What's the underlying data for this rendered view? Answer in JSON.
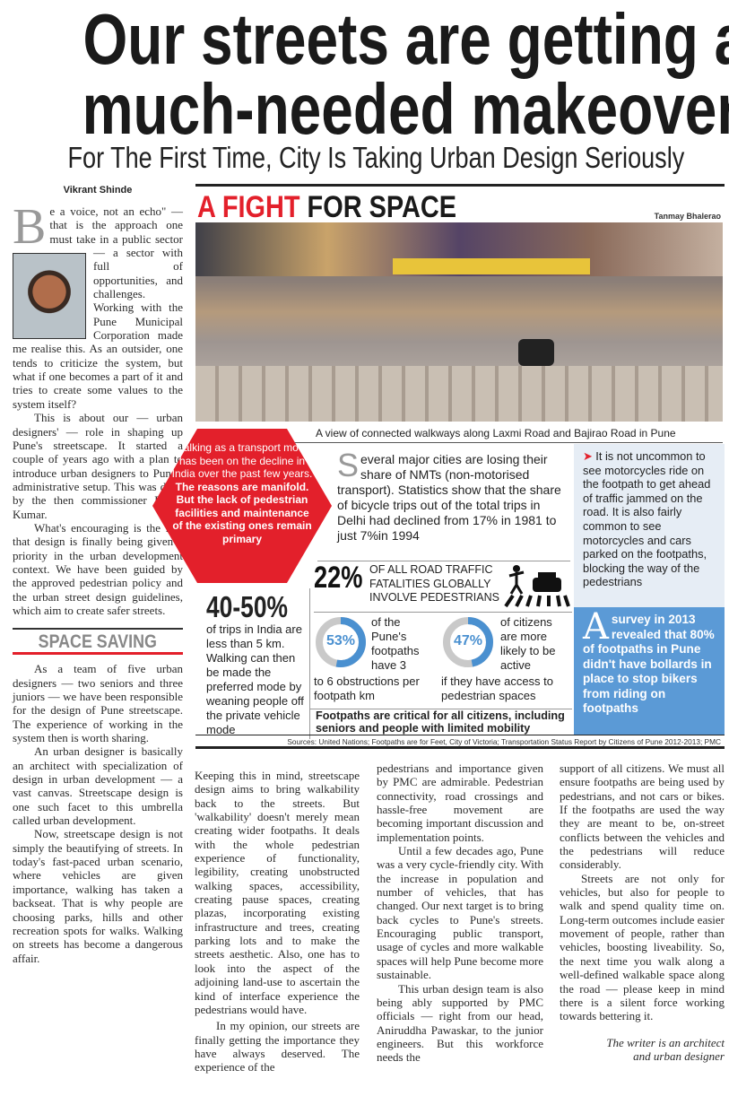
{
  "headline": {
    "line1": "Our streets are getting a",
    "line2": "much-needed makeover"
  },
  "subheadline": "For The First Time, City Is Taking Urban Design Seriously",
  "byline": "Vikrant Shinde",
  "intro": {
    "drop_cap": "B",
    "p1": "e a voice, not an echo\" — that is the approach one must take in a public sector — a sector with full of opportunities, and challenges. Working with the Pune Municipal Corporation made me realise this. As an outsider, one tends to criticize the system, but what if one becomes a part of it and tries to create some values to the system itself?",
    "p2": "This is about our — urban designers' — role in shaping up Pune's streetscape. It started a couple of years ago with a plan to introduce urban designers to Pune's administrative setup. This was done by the then commissioner Kunal Kumar.",
    "p3": "What's encouraging is the fact that design is finally being given a priority in the urban development context. We have been guided by the approved pedestrian policy and the urban street design guidelines, which aim to create safer streets."
  },
  "section_heading": "SPACE SAVING",
  "infographic": {
    "title_red": "A FIGHT",
    "title_black": "FOR SPACE",
    "photo_credit": "Tanmay Bhalerao",
    "caption": "A view of connected walkways along Laxmi Road and Bajirao Road in Pune",
    "hexagon_text_light": "Walking as a transport mode has been on the decline in India over the past few years.",
    "hexagon_text_bold": "The reasons are manifold. But the lack of pedestrian facilities and maintenance of the existing ones remain primary",
    "nmt_drop_cap": "S",
    "nmt_text": "everal major cities are losing their share of NMTs (non-motorised transport). Statistics show that the share of bicycle trips out of the total trips in Delhi had declined from 17% in 1981 to just 7%in 1994",
    "fatalities_pct": "22%",
    "fatalities_text": "OF ALL ROAD TRAFFIC FATALITIES GLOBALLY INVOLVE PEDESTRIANS",
    "trips_pct": "40-50%",
    "trips_text": "of trips in India are less than 5 km. Walking can then be made the preferred mode by weaning people off the private vehicle mode",
    "donut1": {
      "value": 53,
      "label": "53%",
      "text_side": "of the Pune's footpaths have 3",
      "text_below": "to 6 obstructions per footpath km"
    },
    "donut2": {
      "value": 47,
      "label": "47%",
      "text_side": "of citizens are more likely to be active",
      "text_below": "if they have access to pedestrian spaces"
    },
    "footpaths_note": "Footpaths are critical for all citizens, including seniors and people with limited mobility",
    "motorcycles_text": "It is not uncommon to see motorcycles ride on the footpath to get ahead of traffic jammed on the road. It is also fairly common to see motorcycles and cars parked on the footpaths, blocking the way of the pedestrians",
    "survey_drop_cap": "A",
    "survey_text": "survey in 2013 revealed that 80% of footpaths in Pune didn't have bollards in place to stop bikers from riding on footpaths",
    "sources": "Sources: United Nations; Footpaths are for Feet, City of Victoria; Transportation Status Report by Citizens of Pune 2012-2013; PMC"
  },
  "columns": {
    "c1": [
      "As a team of five urban designers — two seniors and three juniors — we have been responsible for the design of Pune streetscape. The experience of working in the system then is worth sharing.",
      "An urban designer is basically an architect with specialization of design in urban development — a vast canvas. Streetscape design is one such facet to this umbrella called urban development.",
      "Now, streetscape design is not simply the beautifying of streets. In today's fast-paced urban scenario, where vehicles are given importance, walking has taken a backseat. That is why people are choosing parks, hills and other recreation spots for walks. Walking on streets has become a dangerous affair."
    ],
    "c2": [
      "Keeping this in mind, streetscape design aims to bring walkability back to the streets. But 'walkability' doesn't merely mean creating wider footpaths. It deals with the whole pedestrian experience of functionality, legibility, creating unobstructed walking spaces, accessibility, creating pause spaces, creating plazas, incorporating existing infrastructure and trees, creating parking lots and to make the streets aesthetic. Also, one has to look into the aspect of the adjoining land-use to ascertain the kind of interface experience the pedestrians would have.",
      "In my opinion, our streets are finally getting the importance they have always deserved. The experience of the"
    ],
    "c3": [
      "pedestrians and importance given by PMC are admirable. Pedestrian connectivity, road crossings and hassle-free movement are becoming important discussion and implementation points.",
      "Until a few decades ago, Pune was a very cycle-friendly city. With the increase in population and number of vehicles, that has changed. Our next target is to bring back cycles to Pune's streets. Encouraging public transport, usage of cycles and more walkable spaces will help Pune become more sustainable.",
      "This urban design team is also being ably supported by PMC officials — right from our head, Aniruddha Pawaskar, to the junior engineers. But this workforce needs the"
    ],
    "c4": [
      "support of all citizens. We must all ensure footpaths are being used by pedestrians, and not cars or bikes. If the footpaths are used the way they are meant to be, on-street conflicts between the vehicles and the pedestrians will reduce considerably.",
      "Streets are not only for vehicles, but also for people to walk and spend quality time on. Long-term outcomes include easier movement of people, rather than vehicles, boosting liveability. So, the next time you walk along a well-defined walkable space along the road — please keep in mind there is a silent force working towards bettering it."
    ],
    "writer_note": "The writer is an architect and urban designer"
  },
  "colors": {
    "red": "#e3202b",
    "blue": "#4a90d0",
    "light_blue_box": "#e6edf5",
    "survey_box": "#5b9ad6",
    "donut_track": "#c9c9c9"
  },
  "icons": [
    "pedestrian-car-crossing-icon",
    "red-arrow-bullet-icon"
  ]
}
